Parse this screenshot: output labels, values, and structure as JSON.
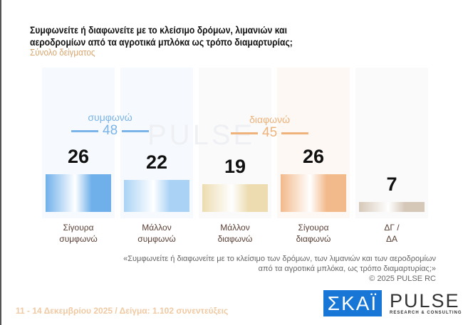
{
  "title_line1": "Συμφωνείτε ή διαφωνείτε με το κλείσιμο δρόμων, λιμανιών και",
  "title_line2": "αεροδρομίων από τα αγροτικά μπλόκα ως τρόπο διαμαρτυρίας;",
  "subtitle": "Σύνολο δείγματος",
  "groups": {
    "agree": {
      "label": "συμφωνώ",
      "value": "48",
      "color": "#7ab4e8"
    },
    "disagree": {
      "label": "διαφωνώ",
      "value": "45",
      "color": "#eeb27a"
    }
  },
  "watermark": "PULSE",
  "quote_line1": "«Συμφωνείτε ή διαφωνείτε με το κλείσιμο των δρόμων, των λιμανιών και των αεροδρομίων",
  "quote_line2": "από τα αγροτικά μπλόκα, ως τρόπο διαμαρτυρίας;»",
  "copyright": "©  2025  PULSE RC",
  "footer": "11 - 14 Δεκεμβρίου 2025  /  Δείγμα:  1.102 συνεντεύξεις",
  "logos": {
    "skai": "ΣΚΑΪ",
    "pulse": "PULSE",
    "pulse_sub": "RESEARCH & CONSULTING"
  },
  "chart_data": {
    "type": "bar",
    "categories": [
      [
        "Σίγουρα",
        "συμφωνώ"
      ],
      [
        "Μάλλον",
        "συμφωνώ"
      ],
      [
        "Μάλλον",
        "διαφωνώ"
      ],
      [
        "Σίγουρα",
        "διαφωνώ"
      ],
      [
        "ΔΓ /",
        "ΔΑ"
      ]
    ],
    "values": [
      26,
      22,
      19,
      26,
      7
    ],
    "colors": [
      "#6fb0ea",
      "#a9d2f5",
      "#ecdcb0",
      "#f2b98a",
      "#d6c8b8"
    ]
  }
}
